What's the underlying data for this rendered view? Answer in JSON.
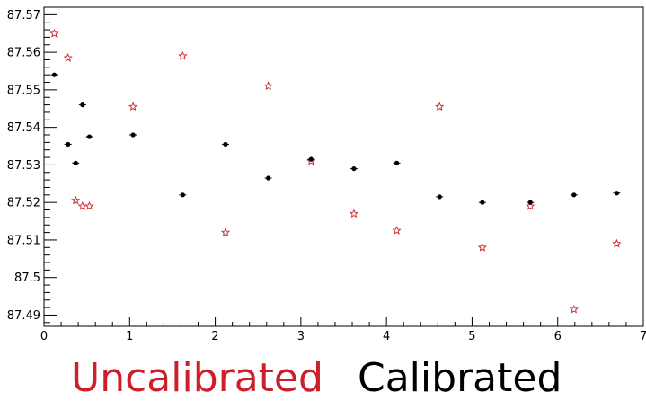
{
  "chart_data": {
    "type": "scatter",
    "title": "",
    "xlabel": "",
    "ylabel": "",
    "xlim": [
      0,
      7
    ],
    "ylim": [
      87.487,
      87.572
    ],
    "grid": false,
    "x_ticks": [
      "0",
      "1",
      "2",
      "3",
      "4",
      "5",
      "6",
      "7"
    ],
    "y_ticks": [
      "87.49",
      "87.5",
      "87.51",
      "87.52",
      "87.53",
      "87.54",
      "87.55",
      "87.56",
      "87.57"
    ],
    "series": [
      {
        "name": "Uncalibrated",
        "color": "#cc1f2a",
        "marker": "open-star",
        "points": [
          {
            "x": 0.12,
            "y": 87.565
          },
          {
            "x": 0.28,
            "y": 87.5585
          },
          {
            "x": 0.37,
            "y": 87.5205
          },
          {
            "x": 0.45,
            "y": 87.519
          },
          {
            "x": 0.53,
            "y": 87.519
          },
          {
            "x": 1.04,
            "y": 87.5455
          },
          {
            "x": 1.62,
            "y": 87.559
          },
          {
            "x": 2.12,
            "y": 87.512
          },
          {
            "x": 2.62,
            "y": 87.551
          },
          {
            "x": 3.12,
            "y": 87.531
          },
          {
            "x": 3.62,
            "y": 87.517
          },
          {
            "x": 4.12,
            "y": 87.5125
          },
          {
            "x": 4.62,
            "y": 87.5455
          },
          {
            "x": 5.12,
            "y": 87.508
          },
          {
            "x": 5.68,
            "y": 87.519
          },
          {
            "x": 6.19,
            "y": 87.4915
          },
          {
            "x": 6.69,
            "y": 87.509
          }
        ]
      },
      {
        "name": "Calibrated",
        "color": "#000000",
        "marker": "filled-circle",
        "points": [
          {
            "x": 0.12,
            "y": 87.554
          },
          {
            "x": 0.28,
            "y": 87.5355
          },
          {
            "x": 0.37,
            "y": 87.5305
          },
          {
            "x": 0.45,
            "y": 87.546
          },
          {
            "x": 0.53,
            "y": 87.5375
          },
          {
            "x": 1.04,
            "y": 87.538
          },
          {
            "x": 1.62,
            "y": 87.522
          },
          {
            "x": 2.12,
            "y": 87.5355
          },
          {
            "x": 2.62,
            "y": 87.5265
          },
          {
            "x": 3.12,
            "y": 87.5315
          },
          {
            "x": 3.62,
            "y": 87.529
          },
          {
            "x": 4.12,
            "y": 87.5305
          },
          {
            "x": 4.62,
            "y": 87.5215
          },
          {
            "x": 5.12,
            "y": 87.52
          },
          {
            "x": 5.68,
            "y": 87.52
          },
          {
            "x": 6.19,
            "y": 87.522
          },
          {
            "x": 6.69,
            "y": 87.5225
          }
        ]
      }
    ],
    "legend": [
      {
        "label": "Uncalibrated",
        "color": "#cc1f2a"
      },
      {
        "label": "Calibrated",
        "color": "#000000"
      }
    ],
    "legend_placement": "bottom"
  }
}
